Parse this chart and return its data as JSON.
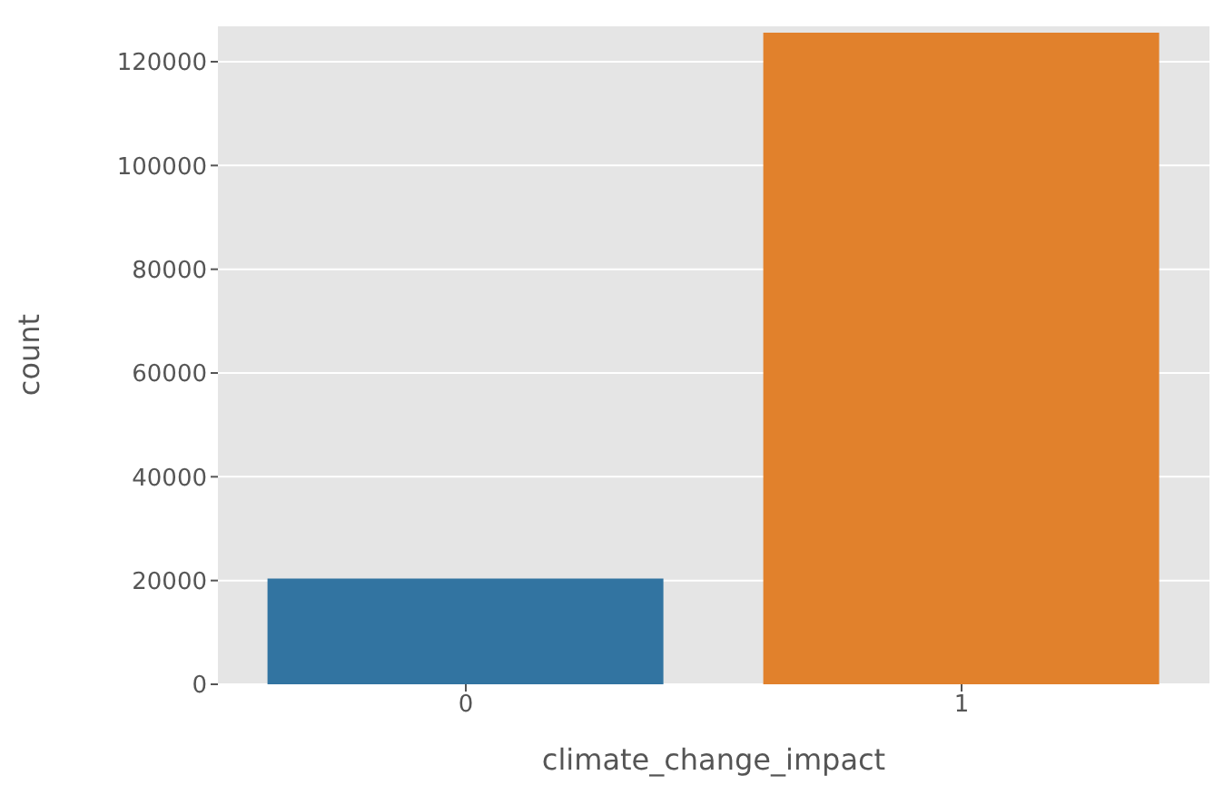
{
  "chart_data": {
    "type": "bar",
    "xlabel": "climate_change_impact",
    "ylabel": "count",
    "categories": [
      "0",
      "1"
    ],
    "values": [
      20400,
      125600
    ],
    "colors": [
      "#3274a1",
      "#e1812c"
    ],
    "ylim": [
      0,
      127000
    ],
    "yticks": [
      0,
      20000,
      40000,
      60000,
      80000,
      100000,
      120000
    ],
    "grid": "y"
  }
}
